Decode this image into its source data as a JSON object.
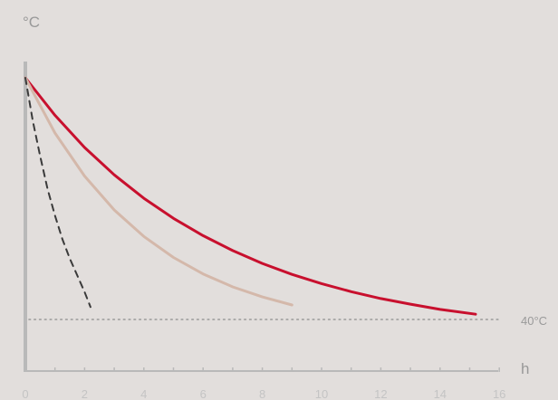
{
  "chart_data": {
    "type": "line",
    "title": "",
    "ylabel": "°C",
    "xlabel": "h",
    "xlim": [
      0,
      16
    ],
    "xticks": [
      "0",
      "2",
      "4",
      "6",
      "8",
      "10",
      "12",
      "14",
      "16"
    ],
    "grid": false,
    "legend": "none",
    "reference_line": {
      "value": 40,
      "label": "40°C",
      "style": "dotted",
      "color": "#9a9a9a"
    },
    "series": [
      {
        "color": "#c8102e",
        "style": "solid",
        "x": [
          0,
          1,
          2,
          3,
          4,
          5,
          6,
          7,
          8,
          9,
          10,
          11,
          12,
          13,
          14,
          15.2
        ],
        "y": [
          100,
          90.7,
          82.7,
          75.9,
          70.1,
          65.1,
          60.8,
          57.1,
          53.9,
          51.2,
          48.9,
          46.9,
          45.2,
          43.8,
          42.5,
          41.3
        ]
      },
      {
        "color": "#d4b8aa",
        "style": "solid",
        "x": [
          0,
          1,
          2,
          3,
          4,
          5,
          6,
          7,
          8,
          9
        ],
        "y": [
          100,
          86.3,
          75.6,
          67.2,
          60.6,
          55.4,
          51.3,
          48.1,
          45.6,
          43.6
        ]
      },
      {
        "color": "#3a3a3a",
        "style": "dashed",
        "x": [
          0,
          0.25,
          0.5,
          0.75,
          1,
          1.25,
          1.5,
          1.75,
          2,
          2.2
        ],
        "y": [
          100,
          89.3,
          80.5,
          72.4,
          65.8,
          59.9,
          55.1,
          51.0,
          46.8,
          43.1
        ]
      }
    ]
  }
}
